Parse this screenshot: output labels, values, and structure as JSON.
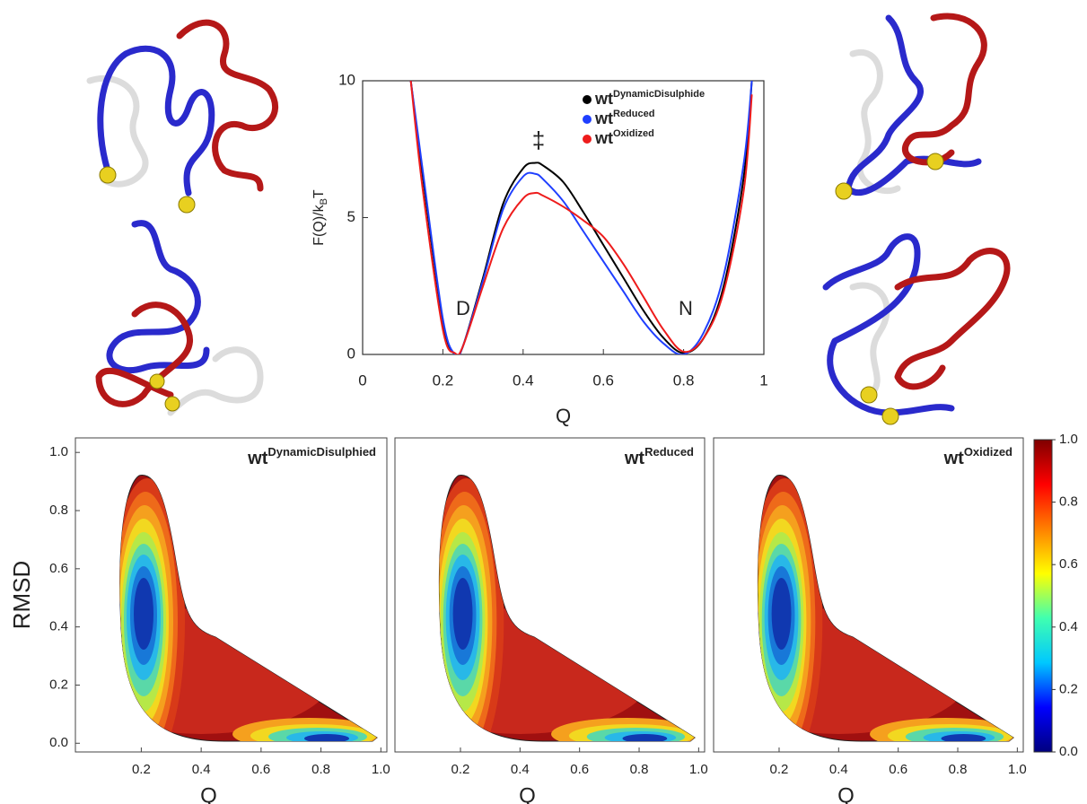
{
  "chart_data": [
    {
      "type": "line",
      "xlabel": "Q",
      "ylabel": [
        "F(Q)/k",
        "B",
        "T"
      ],
      "xlim": [
        0,
        1
      ],
      "ylim": [
        0,
        10
      ],
      "xticks": [
        0,
        0.2,
        0.4,
        0.6,
        0.8,
        1
      ],
      "yticks": [
        0,
        5,
        10
      ],
      "annotations": [
        "‡",
        "D",
        "N"
      ],
      "x": [
        0.12,
        0.15,
        0.2,
        0.23,
        0.25,
        0.3,
        0.35,
        0.4,
        0.43,
        0.45,
        0.5,
        0.55,
        0.6,
        0.65,
        0.7,
        0.75,
        0.8,
        0.85,
        0.9,
        0.95,
        0.97
      ],
      "series": [
        {
          "name": "wt",
          "name_superscript": "DynamicDisulphide",
          "color": "#000000",
          "values": [
            10,
            6.5,
            1.2,
            0,
            0.3,
            2.8,
            5.5,
            6.8,
            7.0,
            6.9,
            6.3,
            5.2,
            4.0,
            2.8,
            1.6,
            0.6,
            0.05,
            0.6,
            2.5,
            6.5,
            10
          ]
        },
        {
          "name": "wt",
          "name_superscript": "Reduced",
          "color": "#1f3fff",
          "values": [
            10,
            6.7,
            1.3,
            0,
            0.3,
            2.7,
            5.3,
            6.5,
            6.6,
            6.4,
            5.6,
            4.5,
            3.4,
            2.3,
            1.2,
            0.4,
            0,
            0.8,
            2.9,
            7.0,
            10
          ]
        },
        {
          "name": "wt",
          "name_superscript": "Oxidized",
          "color": "#ee1c1c",
          "values": [
            10,
            6.0,
            0.9,
            0.05,
            0.3,
            2.5,
            4.6,
            5.7,
            5.9,
            5.8,
            5.4,
            4.9,
            4.3,
            3.3,
            2.1,
            0.9,
            0.1,
            0.6,
            2.3,
            6.0,
            9.5
          ]
        }
      ]
    },
    {
      "type": "contour",
      "title": {
        "text": "wt",
        "superscript": "DynamicDisulphied"
      },
      "xlabel": "Q",
      "ylabel": "RMSD",
      "xlim": [
        -0.02,
        1.02
      ],
      "ylim": [
        -0.03,
        1.05
      ],
      "xticks": [
        0.2,
        0.4,
        0.6,
        0.8,
        {
          "value": 1,
          "label": "1.0"
        }
      ],
      "yticks": [
        {
          "value": 0,
          "label": "0.0"
        },
        0.2,
        0.4,
        0.6,
        0.8,
        {
          "value": 1,
          "label": "1.0"
        }
      ]
    },
    {
      "type": "contour",
      "title": {
        "text": "wt",
        "superscript": "Reduced"
      },
      "xlabel": "Q",
      "xlim": [
        -0.02,
        1.02
      ],
      "ylim": [
        -0.03,
        1.05
      ],
      "xticks": [
        0.2,
        0.4,
        0.6,
        0.8,
        {
          "value": 1,
          "label": "1.0"
        }
      ]
    },
    {
      "type": "contour",
      "title": {
        "text": "wt",
        "superscript": "Oxidized"
      },
      "xlabel": "Q",
      "xlim": [
        -0.02,
        1.02
      ],
      "ylim": [
        -0.03,
        1.05
      ],
      "xticks": [
        0.2,
        0.4,
        0.6,
        0.8,
        {
          "value": 1,
          "label": "1.0"
        }
      ]
    },
    {
      "type": "colorbar",
      "ylim": [
        0,
        1
      ],
      "yticks": [
        {
          "value": 0,
          "label": "0.0"
        },
        0.2,
        0.4,
        0.6,
        0.8,
        {
          "value": 1,
          "label": "1.0"
        }
      ],
      "colormap": [
        "#00007f",
        "#0000ff",
        "#00c8ff",
        "#40ffb0",
        "#ffff00",
        "#ff8000",
        "#ff0000",
        "#7f0000"
      ]
    }
  ]
}
